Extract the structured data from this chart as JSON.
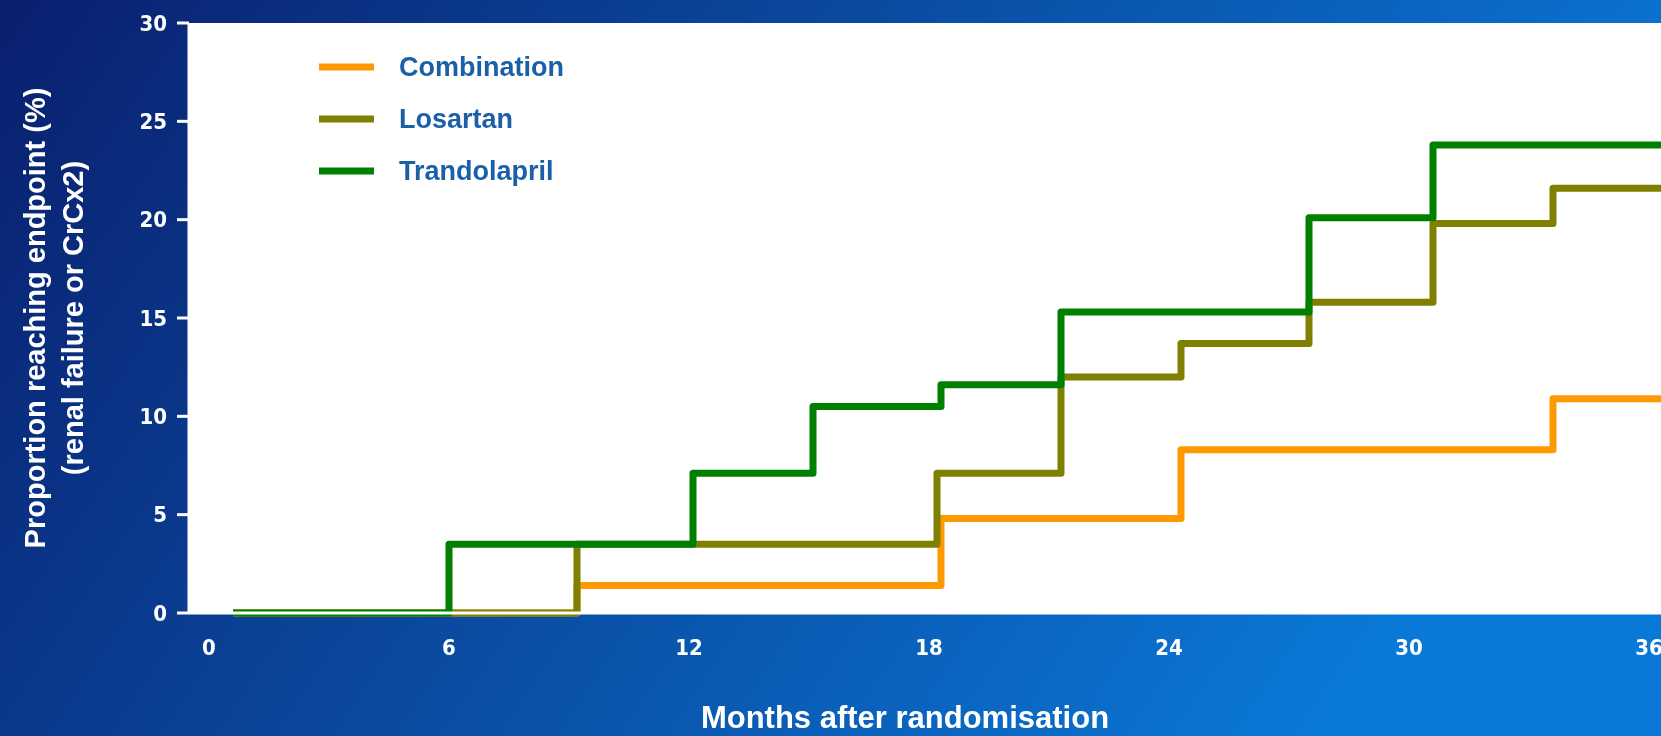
{
  "chart_data": {
    "type": "step",
    "xlabel": "Months after randomisation",
    "ylabel": "Proportion reaching endpoint (%)\n(renal failure or CrCx2)",
    "xlim": [
      -0.5,
      36.3
    ],
    "xticks": [
      0,
      6,
      12,
      18,
      24,
      30,
      36
    ],
    "ylim": [
      0,
      30
    ],
    "yticks": [
      0,
      5,
      10,
      15,
      20,
      25,
      30
    ],
    "grid": false,
    "legend": "top left",
    "line_style": "solid",
    "series": [
      {
        "name": "Combination",
        "color": "#ff9900",
        "x": [
          0.6,
          9.2,
          18.3,
          24.3,
          33.6,
          36.3
        ],
        "values": [
          0,
          1.4,
          4.8,
          8.3,
          10.9,
          10.9
        ]
      },
      {
        "name": "Losartan",
        "color": "#808000",
        "x": [
          0.6,
          9.2,
          18.2,
          21.3,
          24.3,
          27.5,
          30.6,
          33.6,
          36.3
        ],
        "values": [
          0,
          3.5,
          7.1,
          12,
          13.7,
          15.8,
          19.8,
          21.6,
          21.6
        ]
      },
      {
        "name": "Trandolapril",
        "color": "#008000",
        "x": [
          0.6,
          6,
          12.1,
          15.1,
          18.3,
          21.3,
          27.5,
          30.6,
          36.3
        ],
        "values": [
          0,
          3.5,
          7.1,
          10.5,
          11.6,
          15.3,
          20.1,
          23.8,
          23.8
        ]
      }
    ]
  }
}
